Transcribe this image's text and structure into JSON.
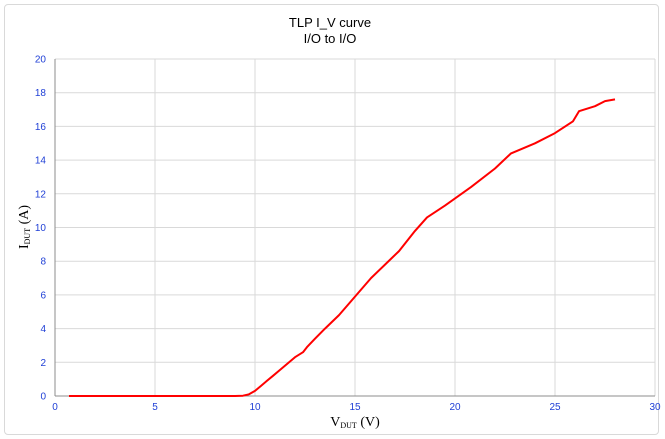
{
  "chart_data": {
    "type": "line",
    "title": "TLP  I_V curve",
    "subtitle": "I/O to I/O",
    "xlabel": {
      "main": "V",
      "sub": "DUT",
      "unit": " (V)"
    },
    "ylabel": {
      "main": "I",
      "sub": "DUT",
      "unit": " (A)"
    },
    "xlim": [
      0,
      30
    ],
    "ylim": [
      0,
      20
    ],
    "xticks": [
      0,
      5,
      10,
      15,
      20,
      25,
      30
    ],
    "yticks": [
      0,
      2,
      4,
      6,
      8,
      10,
      12,
      14,
      16,
      18,
      20
    ],
    "grid": true,
    "legend": "none",
    "colors": {
      "series": "#ff0000",
      "ticks": "#1f3fd6"
    },
    "series": [
      {
        "x": [
          0.7,
          2,
          4,
          6,
          8,
          9,
          9.4,
          9.7,
          10.0,
          10.3,
          10.6,
          10.9,
          11.2,
          11.6,
          12.0,
          12.4,
          12.6,
          13.0,
          13.5,
          14.2,
          15.0,
          15.8,
          16.5,
          17.2,
          18.0,
          18.6,
          19.5,
          20.8,
          22.0,
          22.8,
          24.0,
          25.0,
          25.9,
          26.2,
          27.0,
          27.5,
          28.0
        ],
        "y": [
          0,
          0,
          0,
          0,
          0,
          0,
          0.02,
          0.1,
          0.3,
          0.6,
          0.9,
          1.2,
          1.5,
          1.9,
          2.3,
          2.6,
          2.9,
          3.4,
          4.0,
          4.8,
          5.9,
          7.0,
          7.8,
          8.6,
          9.8,
          10.6,
          11.3,
          12.4,
          13.5,
          14.4,
          15.0,
          15.6,
          16.3,
          16.9,
          17.2,
          17.5,
          17.6
        ]
      }
    ]
  }
}
